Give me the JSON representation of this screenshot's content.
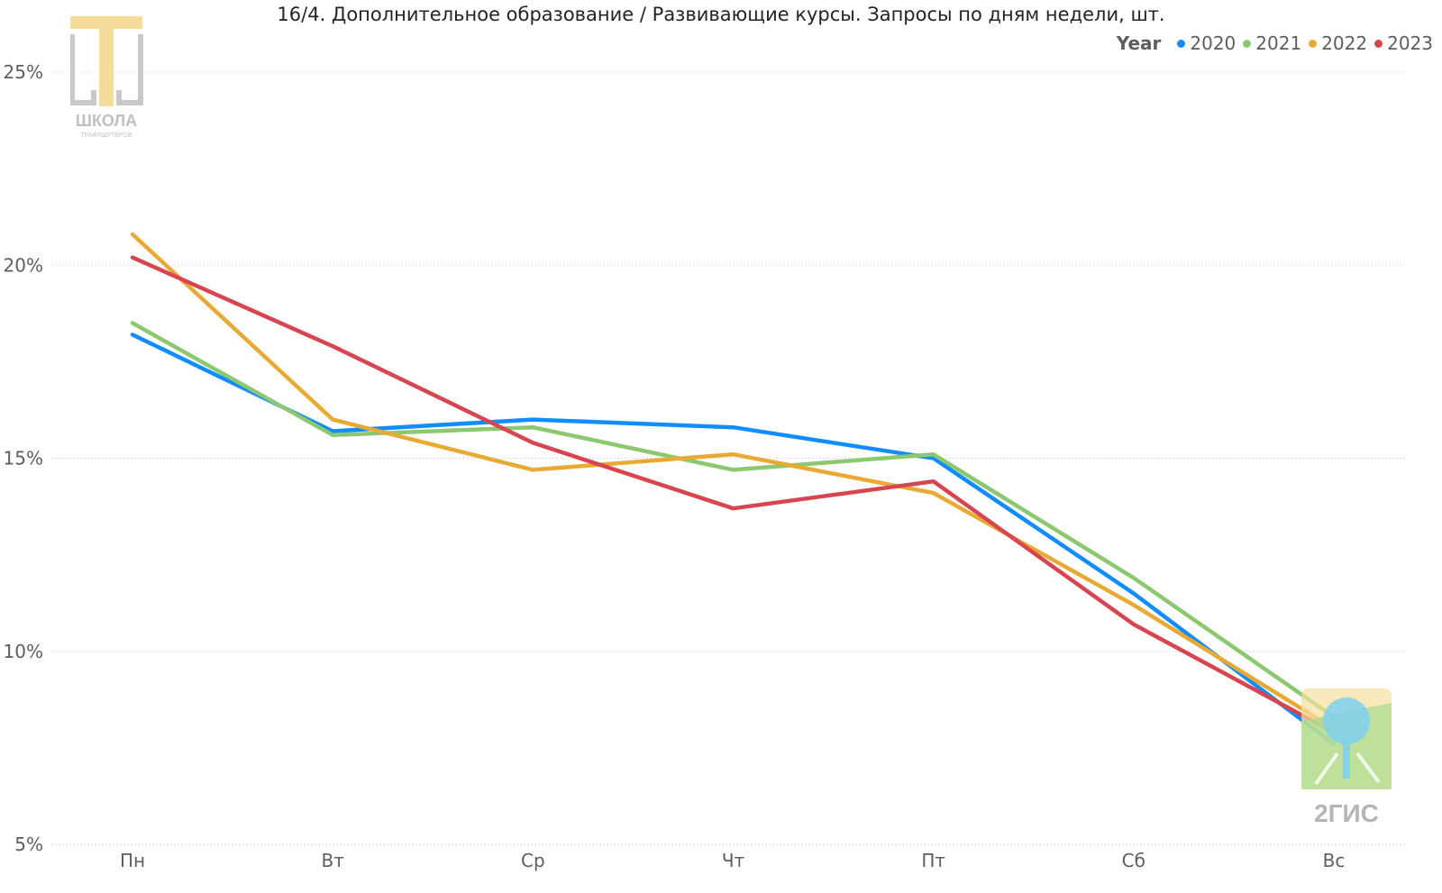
{
  "chart_data": {
    "type": "line",
    "title": "16/4. Дополнительное образование / Развивающие курсы. Запросы по дням недели, шт.",
    "legend_title": "Year",
    "legend_position": "top-right",
    "categories": [
      "Пн",
      "Вт",
      "Ср",
      "Чт",
      "Пт",
      "Сб",
      "Вс"
    ],
    "ylim": [
      5,
      25
    ],
    "yticks": [
      "5%",
      "10%",
      "15%",
      "20%",
      "25%"
    ],
    "ytick_values": [
      5,
      10,
      15,
      20,
      25
    ],
    "grid": true,
    "series": [
      {
        "name": "2020",
        "color": "#118dff",
        "values": [
          18.2,
          15.7,
          16.0,
          15.8,
          15.0,
          11.5,
          7.6
        ]
      },
      {
        "name": "2021",
        "color": "#8bc870",
        "values": [
          18.5,
          15.6,
          15.8,
          14.7,
          15.1,
          11.9,
          8.3
        ]
      },
      {
        "name": "2022",
        "color": "#e8aa35",
        "values": [
          20.8,
          16.0,
          14.7,
          15.1,
          14.1,
          11.2,
          8.0
        ]
      },
      {
        "name": "2023",
        "color": "#d64550",
        "values": [
          20.2,
          17.9,
          15.4,
          13.7,
          14.4,
          10.7,
          7.9
        ]
      }
    ]
  },
  "logos": {
    "school_text": "ШКОЛА",
    "school_subtext": "ТРАФЛШУТЕРОВ",
    "gis_text": "2ГИС"
  }
}
